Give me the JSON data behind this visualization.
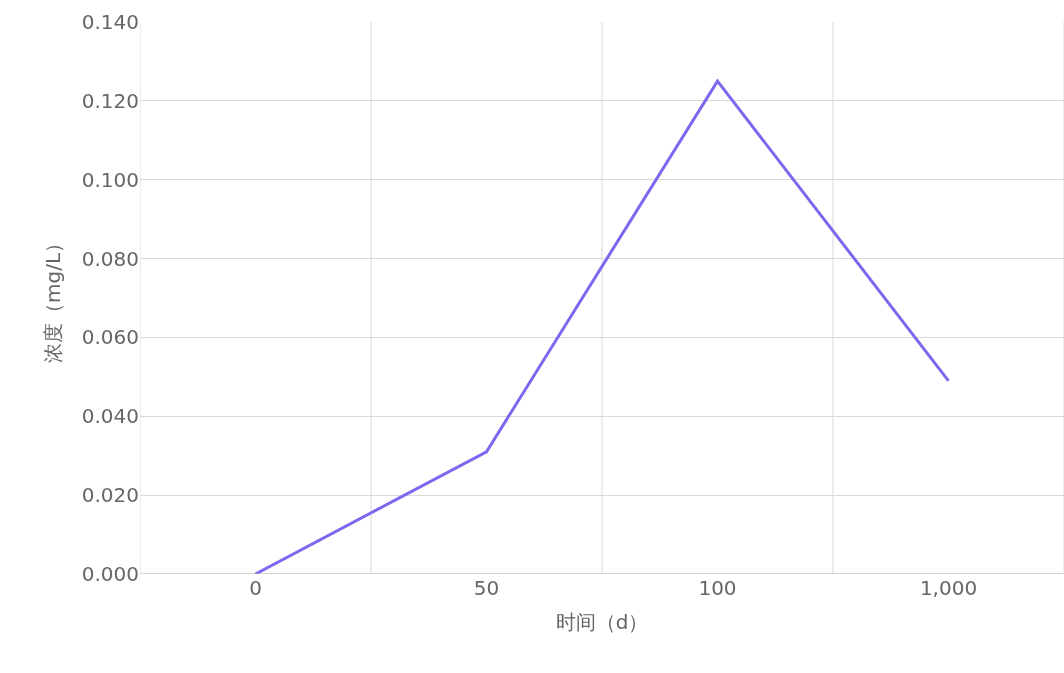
{
  "chart_data": {
    "type": "line",
    "xlabel": "时间（d）",
    "ylabel": "浓度（mg/L）",
    "categories": [
      "0",
      "50",
      "100",
      "1,000"
    ],
    "series": [
      {
        "color": "#7b68ee",
        "values": [
          0.0,
          0.031,
          0.125,
          0.049
        ]
      }
    ],
    "ylim": [
      0,
      0.14
    ],
    "yticks": [
      {
        "value": 0,
        "label": "0.000"
      },
      {
        "value": 0.02,
        "label": "0.020"
      },
      {
        "value": 0.04,
        "label": "0.040"
      },
      {
        "value": 0.06,
        "label": "0.060"
      },
      {
        "value": 0.08,
        "label": "0.080"
      },
      {
        "value": 0.1,
        "label": "0.100"
      },
      {
        "value": 0.12,
        "label": "0.120"
      },
      {
        "value": 0.14,
        "label": "0.140"
      }
    ],
    "grid": true,
    "marker": "none",
    "line_style": "solid"
  }
}
